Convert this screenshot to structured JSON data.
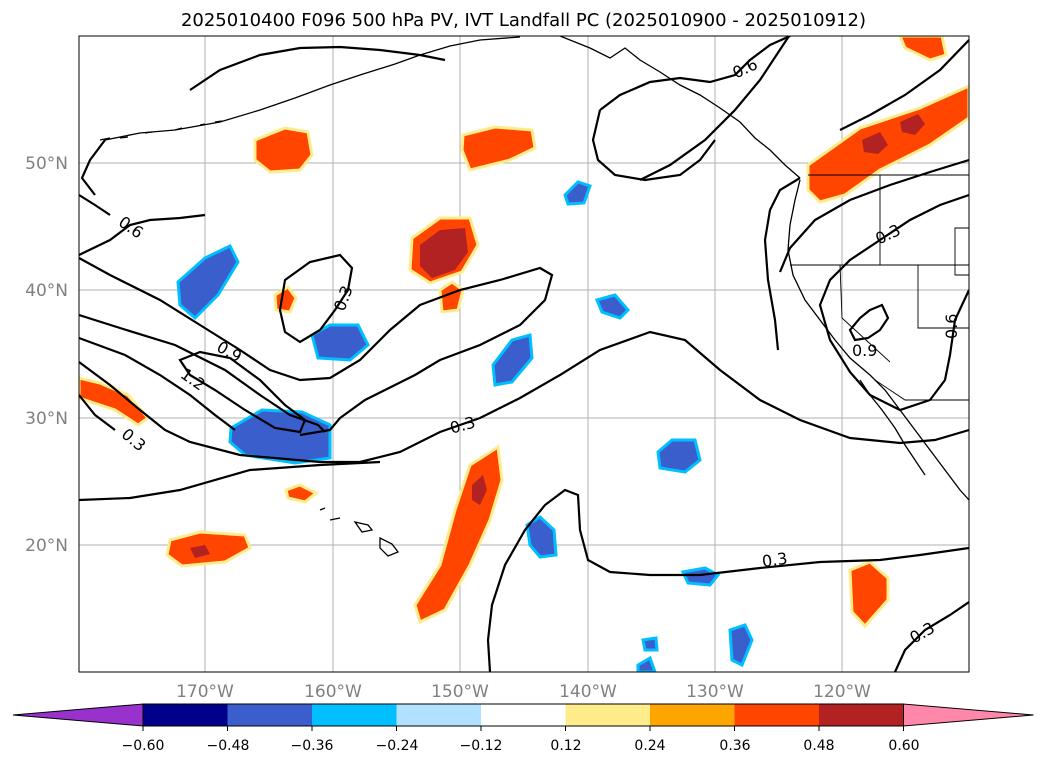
{
  "title": "2025010400 F096 500 hPa PV, IVT Landfall PC (2025010900 - 2025010912)",
  "axes": {
    "lon_labels": [
      "170°W",
      "160°W",
      "150°W",
      "140°W",
      "130°W",
      "120°W"
    ],
    "lat_labels": [
      "50°N",
      "40°N",
      "30°N",
      "20°N"
    ]
  },
  "contour_labels": [
    "0.6",
    "0.6",
    "0.3",
    "0.9",
    "1.2",
    "0.3",
    "0.3",
    "0.3",
    "0.3",
    "0.3",
    "0.9",
    "0.6"
  ],
  "colorbar": {
    "tick_labels": [
      "−0.60",
      "−0.48",
      "−0.36",
      "−0.24",
      "−0.12",
      "0.12",
      "0.24",
      "0.36",
      "0.48",
      "0.60"
    ],
    "colors": [
      "#9932cc",
      "#00008b",
      "#3a5fcd",
      "#00bfff",
      "#b0e2ff",
      "#ffffff",
      "#ffec8b",
      "#ffa500",
      "#ff4500",
      "#b22222",
      "#ff88aa"
    ]
  }
}
